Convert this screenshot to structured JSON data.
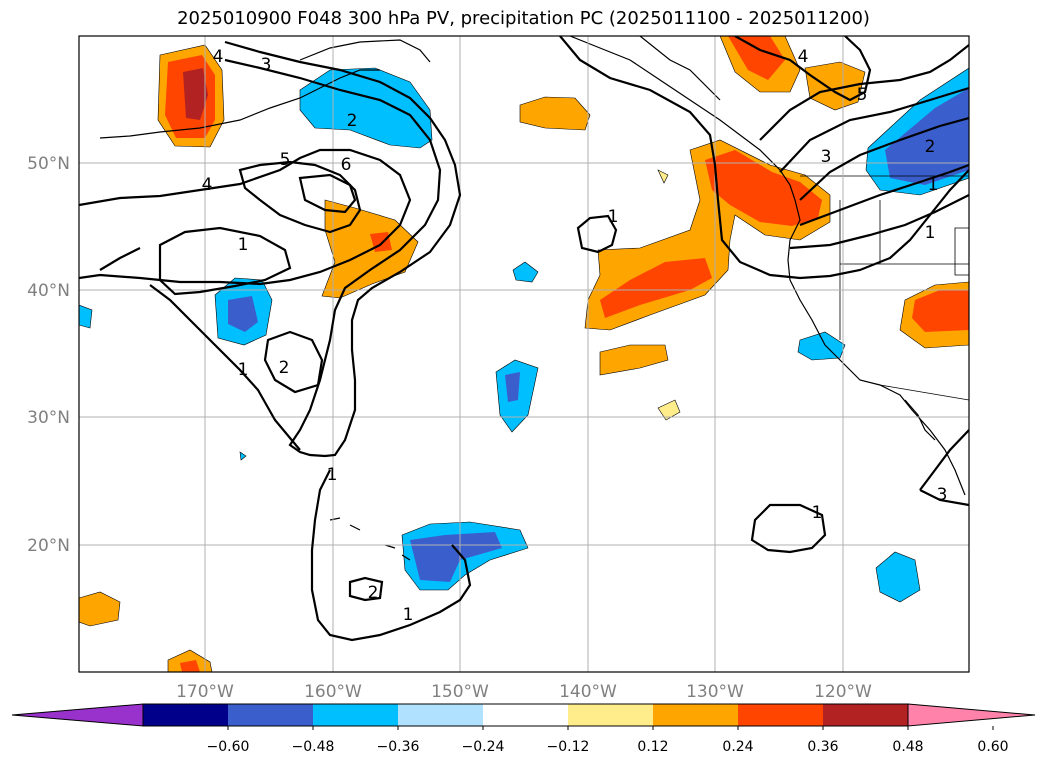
{
  "title": "2025010900 F048 300 hPa PV, precipitation PC (2025011100 - 2025011200)",
  "map": {
    "longitude_labels": [
      "170°W",
      "160°W",
      "150°W",
      "140°W",
      "130°W",
      "120°W"
    ],
    "latitude_labels": [
      "50°N",
      "40°N",
      "30°N",
      "20°N"
    ],
    "grid": true
  },
  "pv_contour_labels": [
    "4",
    "3",
    "2",
    "5",
    "6",
    "4",
    "1",
    "1",
    "2",
    "1",
    "2",
    "1",
    "1",
    "1",
    "3",
    "4",
    "5",
    "3",
    "2",
    "1",
    "1"
  ],
  "colorbar": {
    "ticks": [
      "−0.60",
      "−0.48",
      "−0.36",
      "−0.24",
      "−0.12",
      "0.12",
      "0.24",
      "0.36",
      "0.48",
      "0.60"
    ],
    "colors": [
      "#9932cc",
      "#00008b",
      "#3a5fcd",
      "#00bfff",
      "#b0e2ff",
      "#ffffff",
      "#ffec8b",
      "#ffa500",
      "#ff4500",
      "#b22222",
      "#ff82ab"
    ],
    "extend": "both"
  }
}
